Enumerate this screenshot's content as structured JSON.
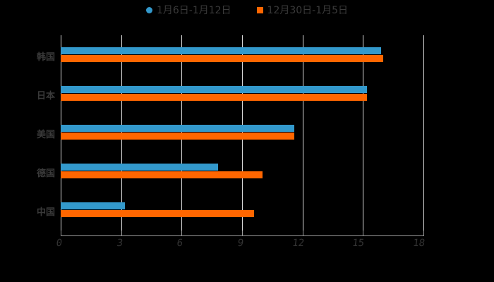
{
  "chart_data": {
    "type": "bar",
    "orientation": "horizontal",
    "title": "",
    "xlabel": "",
    "ylabel": "",
    "categories": [
      "韩国",
      "日本",
      "美国",
      "德国",
      "中国"
    ],
    "series": [
      {
        "name": "1月6日-1月12日",
        "color": "#3399cc",
        "values": [
          15.9,
          15.2,
          11.6,
          7.8,
          3.2
        ]
      },
      {
        "name": "12月30日-1月5日",
        "color": "#ff6600",
        "values": [
          16.0,
          15.2,
          11.6,
          10.0,
          9.6
        ]
      }
    ],
    "xlim": [
      0,
      18
    ],
    "xticks": [
      0,
      3,
      6,
      9,
      12,
      15,
      18
    ],
    "grid": "vertical",
    "legend_position": "top"
  },
  "legend": {
    "items": [
      {
        "label": "1月6日-1月12日",
        "color": "#3399cc"
      },
      {
        "label": "12月30日-1月5日",
        "color": "#ff6600"
      }
    ]
  }
}
